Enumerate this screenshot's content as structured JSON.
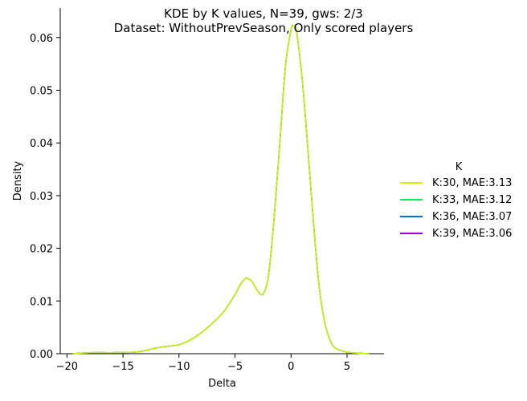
{
  "chart_data": {
    "type": "line",
    "title": "KDE by K values, N=39, gws: 2/3",
    "subtitle": "Dataset: WithoutPrevSeason, Only scored players",
    "xlabel": "Delta",
    "ylabel": "Density",
    "xlim": [
      -20.6,
      8.3
    ],
    "ylim": [
      0,
      0.0656
    ],
    "xticks": [
      -20,
      -15,
      -10,
      -5,
      0,
      5
    ],
    "xtick_labels": [
      "−20",
      "−15",
      "−10",
      "−5",
      "0",
      "5"
    ],
    "yticks": [
      0,
      0.01,
      0.02,
      0.03,
      0.04,
      0.05,
      0.06
    ],
    "ytick_labels": [
      "0.00",
      "0.01",
      "0.02",
      "0.03",
      "0.04",
      "0.05",
      "0.06"
    ],
    "grid": false,
    "legend_title": "K",
    "legend_position": "right",
    "x": [
      -19.5,
      -18,
      -16,
      -14,
      -13,
      -12,
      -11,
      -10,
      -9,
      -8,
      -7,
      -6,
      -5,
      -4.5,
      -4,
      -3.5,
      -3,
      -2.5,
      -2,
      -1.5,
      -1,
      -0.5,
      0,
      0.2,
      0.5,
      1,
      1.5,
      2,
      2.5,
      3,
      3.5,
      4,
      5,
      6,
      7
    ],
    "series": [
      {
        "name": "K:30, MAE:3.13",
        "color": "#d4f000",
        "values": [
          0.0,
          0.0002,
          0.0002,
          0.0003,
          0.0006,
          0.0011,
          0.0014,
          0.0017,
          0.0026,
          0.004,
          0.0058,
          0.008,
          0.0112,
          0.0132,
          0.0143,
          0.0137,
          0.012,
          0.0113,
          0.015,
          0.026,
          0.04,
          0.0545,
          0.0615,
          0.0622,
          0.061,
          0.052,
          0.039,
          0.025,
          0.013,
          0.006,
          0.0025,
          0.001,
          0.0003,
          0.0001,
          0.0
        ]
      },
      {
        "name": "K:33, MAE:3.12",
        "color": "#00f060",
        "values": [
          0.0,
          0.0002,
          0.0002,
          0.0003,
          0.0006,
          0.0011,
          0.0014,
          0.0017,
          0.0026,
          0.004,
          0.0058,
          0.008,
          0.0112,
          0.0132,
          0.0143,
          0.0137,
          0.012,
          0.0113,
          0.015,
          0.026,
          0.04,
          0.0545,
          0.0615,
          0.0622,
          0.061,
          0.052,
          0.039,
          0.025,
          0.013,
          0.006,
          0.0025,
          0.001,
          0.0003,
          0.0001,
          0.0
        ]
      },
      {
        "name": "K:36, MAE:3.07",
        "color": "#0070e0",
        "values": [
          0.0,
          0.0002,
          0.0002,
          0.0003,
          0.0006,
          0.0011,
          0.0014,
          0.0017,
          0.0026,
          0.004,
          0.0058,
          0.008,
          0.0112,
          0.0132,
          0.0143,
          0.0137,
          0.012,
          0.0113,
          0.015,
          0.026,
          0.04,
          0.0545,
          0.0615,
          0.0622,
          0.061,
          0.052,
          0.039,
          0.025,
          0.013,
          0.006,
          0.0025,
          0.001,
          0.0003,
          0.0001,
          0.0
        ]
      },
      {
        "name": "K:39, MAE:3.06",
        "color": "#a000e0",
        "values": [
          0.0,
          0.0002,
          0.0002,
          0.0003,
          0.0006,
          0.0011,
          0.0014,
          0.0017,
          0.0026,
          0.004,
          0.0058,
          0.008,
          0.0112,
          0.0132,
          0.0143,
          0.0137,
          0.012,
          0.0113,
          0.015,
          0.026,
          0.04,
          0.0545,
          0.0615,
          0.0622,
          0.061,
          0.052,
          0.039,
          0.025,
          0.013,
          0.006,
          0.0025,
          0.001,
          0.0003,
          0.0001,
          0.0
        ]
      }
    ]
  }
}
